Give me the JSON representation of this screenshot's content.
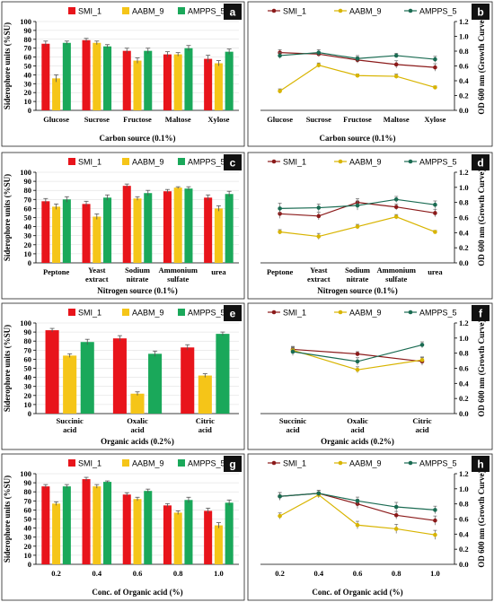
{
  "colors": {
    "SMI_1": "#e8141b",
    "AABM_9": "#f5c518",
    "AMPPS_5": "#1aa85a",
    "line_SMI_1": "#8b1a1a",
    "line_AABM_9": "#d8b400",
    "line_AMPPS_5": "#1a6b52",
    "letter_bg": "#111111"
  },
  "chart_data": [
    {
      "panel": "a",
      "type": "bar",
      "xlabel": "Carbon source (0.1%)",
      "ylabel": "Siderophore units (%SU)",
      "ylim": [
        0,
        100
      ],
      "yticks": [
        0,
        10,
        20,
        30,
        40,
        50,
        60,
        70,
        80,
        90,
        100
      ],
      "categories": [
        "Glucose",
        "Sucrose",
        "Fructose",
        "Maltose",
        "Xylose"
      ],
      "series": [
        {
          "name": "SMI_1",
          "values": [
            75,
            79,
            67,
            63,
            58
          ],
          "errors": [
            3,
            2,
            3,
            3,
            4
          ]
        },
        {
          "name": "AABM_9",
          "values": [
            36,
            76,
            56,
            63,
            53
          ],
          "errors": [
            4,
            2,
            3,
            2,
            3
          ]
        },
        {
          "name": "AMPPS_5",
          "values": [
            76,
            72,
            67,
            70,
            66
          ],
          "errors": [
            2,
            2,
            3,
            3,
            3
          ]
        }
      ]
    },
    {
      "panel": "b",
      "type": "line",
      "xlabel": "Carbon source (0.1%)",
      "ylabel": "OD 600 nm (Growth Curve)",
      "ylim": [
        0,
        1.2
      ],
      "yticks": [
        "0.0",
        "0.2",
        "0.4",
        "0.6",
        "0.8",
        "1.0",
        "1.2"
      ],
      "categories": [
        "Glucose",
        "Sucrose",
        "Fructose",
        "Maltose",
        "Xylose"
      ],
      "series": [
        {
          "name": "SMI_1",
          "values": [
            0.78,
            0.76,
            0.68,
            0.62,
            0.58
          ],
          "errors": [
            0.04,
            0.03,
            0.04,
            0.05,
            0.05
          ]
        },
        {
          "name": "AABM_9",
          "values": [
            0.26,
            0.61,
            0.47,
            0.46,
            0.31
          ],
          "errors": [
            0.03,
            0.03,
            0.02,
            0.03,
            0.02
          ]
        },
        {
          "name": "AMPPS_5",
          "values": [
            0.74,
            0.78,
            0.7,
            0.74,
            0.69
          ],
          "errors": [
            0.04,
            0.04,
            0.04,
            0.03,
            0.04
          ]
        }
      ]
    },
    {
      "panel": "c",
      "type": "bar",
      "xlabel": "Nitrogen source (0.1%)",
      "ylabel": "Siderophore units (%SU)",
      "ylim": [
        0,
        100
      ],
      "yticks": [
        0,
        10,
        20,
        30,
        40,
        50,
        60,
        70,
        80,
        90,
        100
      ],
      "categories": [
        "Peptone",
        "Yeast extract",
        "Sodium nitrate",
        "Ammonium sulfate",
        "urea"
      ],
      "series": [
        {
          "name": "SMI_1",
          "values": [
            68,
            65,
            85,
            79,
            72
          ],
          "errors": [
            3,
            3,
            2,
            2,
            3
          ]
        },
        {
          "name": "AABM_9",
          "values": [
            62,
            51,
            71,
            83,
            60
          ],
          "errors": [
            3,
            3,
            2,
            1,
            3
          ]
        },
        {
          "name": "AMPPS_5",
          "values": [
            70,
            72,
            77,
            82,
            76
          ],
          "errors": [
            3,
            3,
            3,
            2,
            3
          ]
        }
      ]
    },
    {
      "panel": "d",
      "type": "line",
      "xlabel": "Nitrogen source (0.1%)",
      "ylabel": "OD 600 nm (Growth Curve)",
      "ylim": [
        0,
        1.2
      ],
      "yticks": [
        "0.0",
        "0.2",
        "0.4",
        "0.6",
        "0.8",
        "1.0",
        "1.2"
      ],
      "categories": [
        "Peptone",
        "Yeast extract",
        "Sodium nitrate",
        "Ammonium sulfate",
        "urea"
      ],
      "series": [
        {
          "name": "SMI_1",
          "values": [
            0.65,
            0.62,
            0.8,
            0.74,
            0.66
          ],
          "errors": [
            0.06,
            0.05,
            0.05,
            0.04,
            0.05
          ]
        },
        {
          "name": "AABM_9",
          "values": [
            0.41,
            0.35,
            0.48,
            0.61,
            0.41
          ],
          "errors": [
            0.03,
            0.04,
            0.03,
            0.03,
            0.02
          ]
        },
        {
          "name": "AMPPS_5",
          "values": [
            0.72,
            0.73,
            0.76,
            0.84,
            0.77
          ],
          "errors": [
            0.07,
            0.05,
            0.06,
            0.04,
            0.05
          ]
        }
      ]
    },
    {
      "panel": "e",
      "type": "bar",
      "xlabel": "Organic acids (0.2%)",
      "ylabel": "Siderophore units (%SU)",
      "ylim": [
        0,
        100
      ],
      "yticks": [
        0,
        10,
        20,
        30,
        40,
        50,
        60,
        70,
        80,
        90,
        100
      ],
      "categories": [
        "Succinic acid",
        "Oxalic acid",
        "Citric acid"
      ],
      "series": [
        {
          "name": "SMI_1",
          "values": [
            92,
            83,
            73
          ],
          "errors": [
            2,
            3,
            3
          ]
        },
        {
          "name": "AABM_9",
          "values": [
            64,
            22,
            42
          ],
          "errors": [
            2,
            2,
            2
          ]
        },
        {
          "name": "AMPPS_5",
          "values": [
            79,
            66,
            88
          ],
          "errors": [
            3,
            3,
            2
          ]
        }
      ]
    },
    {
      "panel": "f",
      "type": "line",
      "xlabel": "Organic acids (0.2%)",
      "ylabel": "OD 600 nm (Growth Curve)",
      "ylim": [
        0,
        1.2
      ],
      "yticks": [
        "0.0",
        "0.2",
        "0.4",
        "0.6",
        "0.8",
        "1.0",
        "1.2"
      ],
      "categories": [
        "Succinic acid",
        "Oxalic acid",
        "Citric acid"
      ],
      "series": [
        {
          "name": "SMI_1",
          "values": [
            0.85,
            0.79,
            0.69
          ],
          "errors": [
            0.04,
            0.03,
            0.05
          ]
        },
        {
          "name": "AABM_9",
          "values": [
            0.84,
            0.58,
            0.71
          ],
          "errors": [
            0.04,
            0.04,
            0.04
          ]
        },
        {
          "name": "AMPPS_5",
          "values": [
            0.82,
            0.69,
            0.91
          ],
          "errors": [
            0.05,
            0.05,
            0.04
          ]
        }
      ]
    },
    {
      "panel": "g",
      "type": "bar",
      "xlabel": "Conc. of Organic acid (%)",
      "ylabel": "Siderophore units (%SU)",
      "ylim": [
        0,
        100
      ],
      "yticks": [
        0,
        10,
        20,
        30,
        40,
        50,
        60,
        70,
        80,
        90,
        100
      ],
      "categories": [
        "0.2",
        "0.4",
        "0.6",
        "0.8",
        "1.0"
      ],
      "series": [
        {
          "name": "SMI_1",
          "values": [
            86,
            94,
            77,
            65,
            59
          ],
          "errors": [
            2,
            2,
            2,
            2,
            3
          ]
        },
        {
          "name": "AABM_9",
          "values": [
            67,
            86,
            72,
            57,
            43
          ],
          "errors": [
            2,
            2,
            2,
            2,
            3
          ]
        },
        {
          "name": "AMPPS_5",
          "values": [
            86,
            91,
            81,
            71,
            68
          ],
          "errors": [
            2,
            1,
            2,
            3,
            3
          ]
        }
      ]
    },
    {
      "panel": "h",
      "type": "line",
      "xlabel": "Conc. of Organic acid (%)",
      "ylabel": "OD 600 nm (Growth Curve)",
      "ylim": [
        0,
        1.2
      ],
      "yticks": [
        "0.0",
        "0.2",
        "0.4",
        "0.6",
        "0.8",
        "1.0",
        "1.2"
      ],
      "categories": [
        "0.2",
        "0.4",
        "0.6",
        "0.8",
        "1.0"
      ],
      "series": [
        {
          "name": "SMI_1",
          "values": [
            0.9,
            0.94,
            0.8,
            0.65,
            0.58
          ],
          "errors": [
            0.05,
            0.04,
            0.06,
            0.05,
            0.06
          ]
        },
        {
          "name": "AABM_9",
          "values": [
            0.64,
            0.92,
            0.52,
            0.47,
            0.39
          ],
          "errors": [
            0.04,
            0.04,
            0.05,
            0.06,
            0.06
          ]
        },
        {
          "name": "AMPPS_5",
          "values": [
            0.9,
            0.94,
            0.84,
            0.76,
            0.72
          ],
          "errors": [
            0.05,
            0.04,
            0.05,
            0.06,
            0.05
          ]
        }
      ]
    }
  ]
}
